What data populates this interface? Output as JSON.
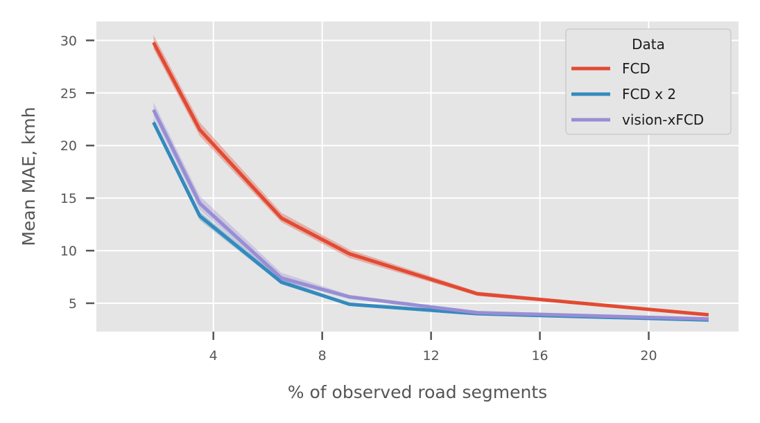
{
  "chart_data": {
    "type": "line",
    "xlabel": "% of observed road segments",
    "ylabel": "Mean MAE, kmh",
    "xlim": [
      -0.3,
      23.3
    ],
    "ylim": [
      2.3,
      31.8
    ],
    "x_ticks": [
      4,
      8,
      12,
      16,
      20
    ],
    "y_ticks": [
      5,
      10,
      15,
      20,
      25,
      30
    ],
    "grid": true,
    "legend": {
      "title": "Data",
      "placement": "top-right"
    },
    "series": [
      {
        "name": "FCD",
        "color": "#E24A33",
        "x": [
          1.8,
          3.5,
          6.5,
          9.0,
          13.7,
          22.2
        ],
        "y": [
          29.8,
          21.5,
          13.1,
          9.7,
          5.9,
          3.9
        ],
        "ci_lower": [
          29.2,
          20.9,
          12.7,
          9.3,
          5.7,
          3.8
        ],
        "ci_upper": [
          30.5,
          22.2,
          13.6,
          10.1,
          6.1,
          4.0
        ]
      },
      {
        "name": "FCD x 2",
        "color": "#348ABD",
        "x": [
          1.8,
          3.5,
          6.5,
          9.0,
          13.7,
          22.2
        ],
        "y": [
          22.2,
          13.3,
          7.0,
          4.9,
          4.0,
          3.4
        ],
        "ci_lower": [
          21.9,
          12.9,
          6.8,
          4.8,
          3.9,
          3.3
        ],
        "ci_upper": [
          22.6,
          13.7,
          7.3,
          5.0,
          4.1,
          3.5
        ]
      },
      {
        "name": "vision-xFCD",
        "color": "#988ED5",
        "x": [
          1.8,
          3.5,
          6.5,
          9.0,
          13.7,
          22.2
        ],
        "y": [
          23.4,
          14.5,
          7.4,
          5.6,
          4.1,
          3.5
        ],
        "ci_lower": [
          22.8,
          13.9,
          7.1,
          5.4,
          4.0,
          3.4
        ],
        "ci_upper": [
          24.1,
          15.2,
          7.9,
          5.8,
          4.2,
          3.6
        ]
      }
    ]
  }
}
